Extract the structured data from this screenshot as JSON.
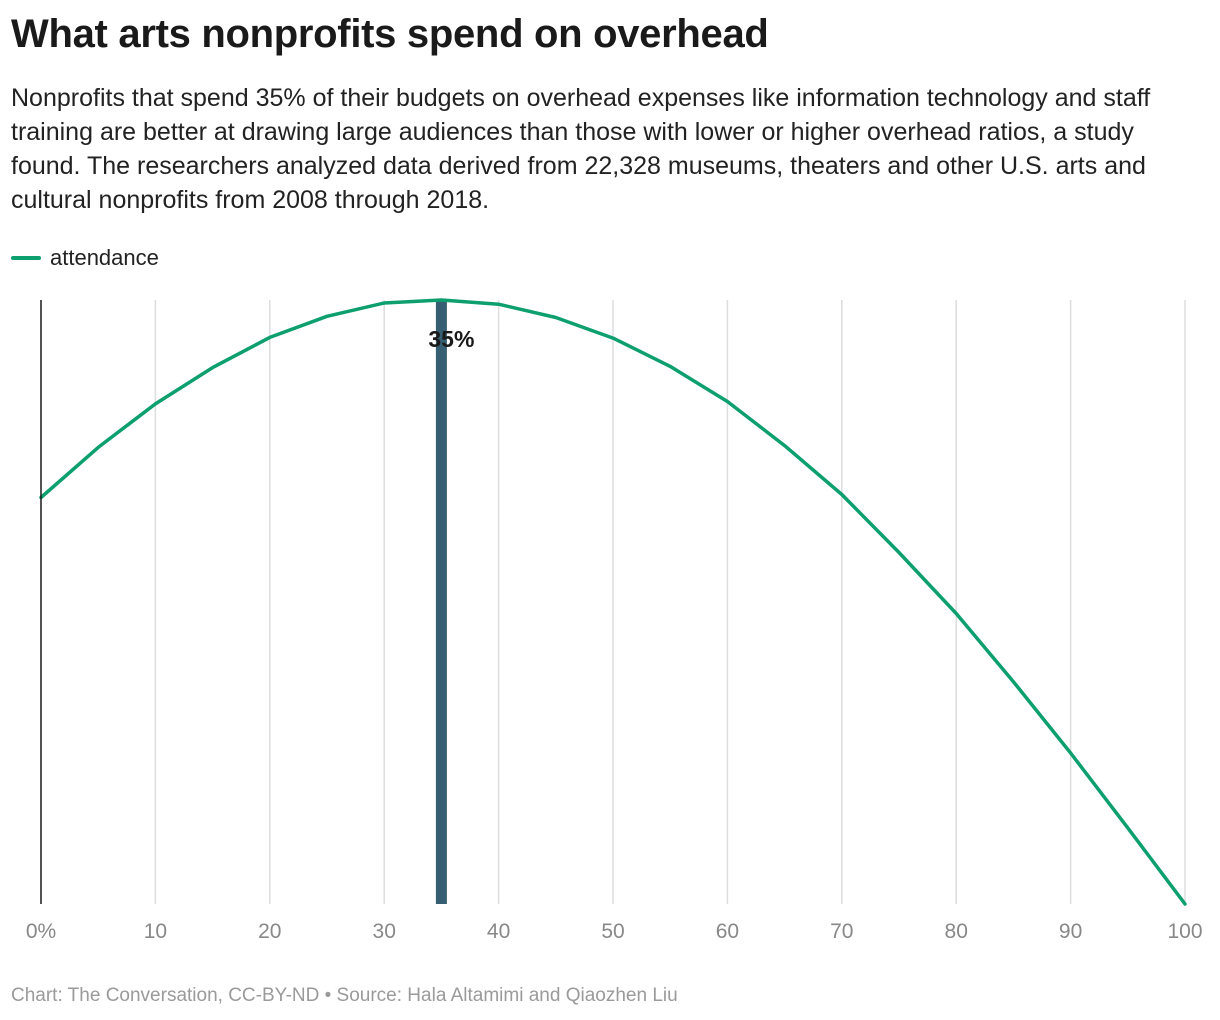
{
  "title": "What arts nonprofits spend on overhead",
  "subtitle": "Nonprofits that spend 35% of their budgets on overhead expenses like information technology and staff training are better at drawing large audiences than those with lower or higher overhead ratios, a study found. The researchers analyzed data derived from 22,328 museums, theaters and other U.S. arts and cultural nonprofits from 2008 through 2018.",
  "footer": "Chart: The Conversation, CC-BY-ND • Source: Hala Altamimi and Qiaozhen Liu",
  "colors": {
    "series": "#0e9f6e",
    "highlight": "#365f73",
    "grid": "#dddddd",
    "axis": "#1a1a1a"
  },
  "chart_data": {
    "type": "line",
    "x_tick_labels": [
      "0%",
      "10",
      "20",
      "30",
      "40",
      "50",
      "60",
      "70",
      "80",
      "90",
      "100"
    ],
    "x_ticks": [
      0,
      10,
      20,
      30,
      40,
      50,
      60,
      70,
      80,
      90,
      100
    ],
    "xlim": [
      0,
      100
    ],
    "y_axis_labels_shown": false,
    "grid": "vertical",
    "legend_position": "top-left",
    "series": [
      {
        "name": "attendance",
        "x": [
          0,
          5,
          10,
          15,
          20,
          25,
          30,
          35,
          40,
          45,
          50,
          55,
          60,
          65,
          70,
          75,
          80,
          85,
          90,
          95,
          100
        ],
        "y": [
          67.3,
          75.6,
          82.8,
          88.8,
          93.8,
          97.3,
          99.5,
          100,
          99.3,
          97.1,
          93.7,
          89.0,
          83.2,
          75.9,
          67.8,
          58.2,
          48.1,
          36.8,
          25.0,
          12.6,
          0
        ]
      }
    ],
    "highlight_band": {
      "x": 35,
      "label": "35%"
    }
  }
}
